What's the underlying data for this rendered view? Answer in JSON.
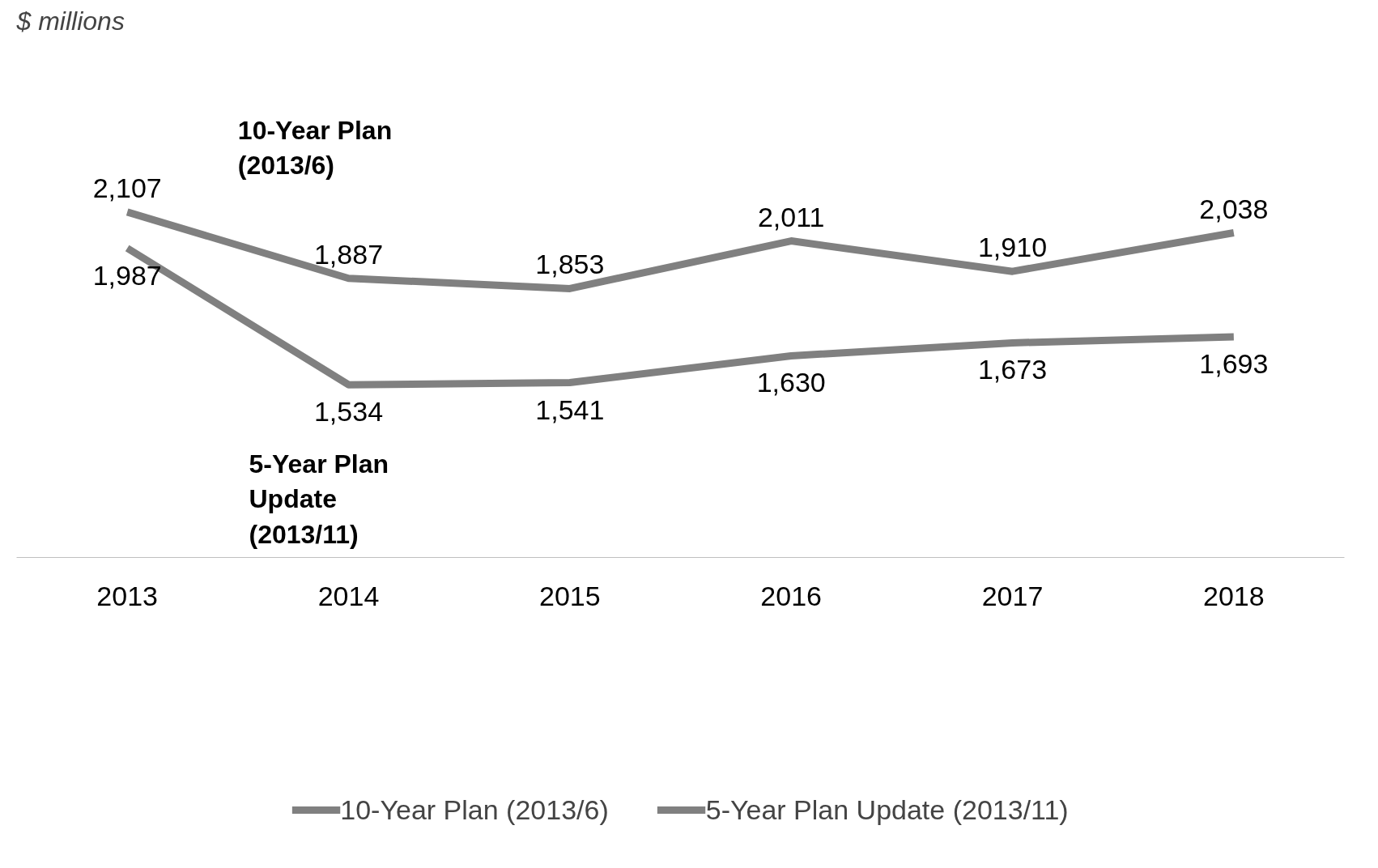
{
  "chart_data": {
    "type": "line",
    "categories": [
      "2013",
      "2014",
      "2015",
      "2016",
      "2017",
      "2018"
    ],
    "series": [
      {
        "name": "10-Year Plan (2013/6)",
        "color": "#808080",
        "values": [
          2107,
          1887,
          1853,
          2011,
          1910,
          2038
        ],
        "value_labels": [
          "2,107",
          "1,887",
          "1,853",
          "2,011",
          "1,910",
          "2,038"
        ]
      },
      {
        "name": "5-Year Plan Update (2013/11)",
        "color": "#808080",
        "values": [
          1987,
          1534,
          1541,
          1630,
          1673,
          1693
        ],
        "value_labels": [
          "1,987",
          "1,534",
          "1,541",
          "1,630",
          "1,673",
          "1,693"
        ]
      }
    ],
    "annotations": [
      "$ millions",
      "10-Year Plan\n(2013/6)",
      "5-Year Plan\nUpdate\n(2013/11)"
    ],
    "tick_labels": "x",
    "grid": false,
    "legend": "bottom",
    "marker": "none",
    "line_style": "solid"
  }
}
